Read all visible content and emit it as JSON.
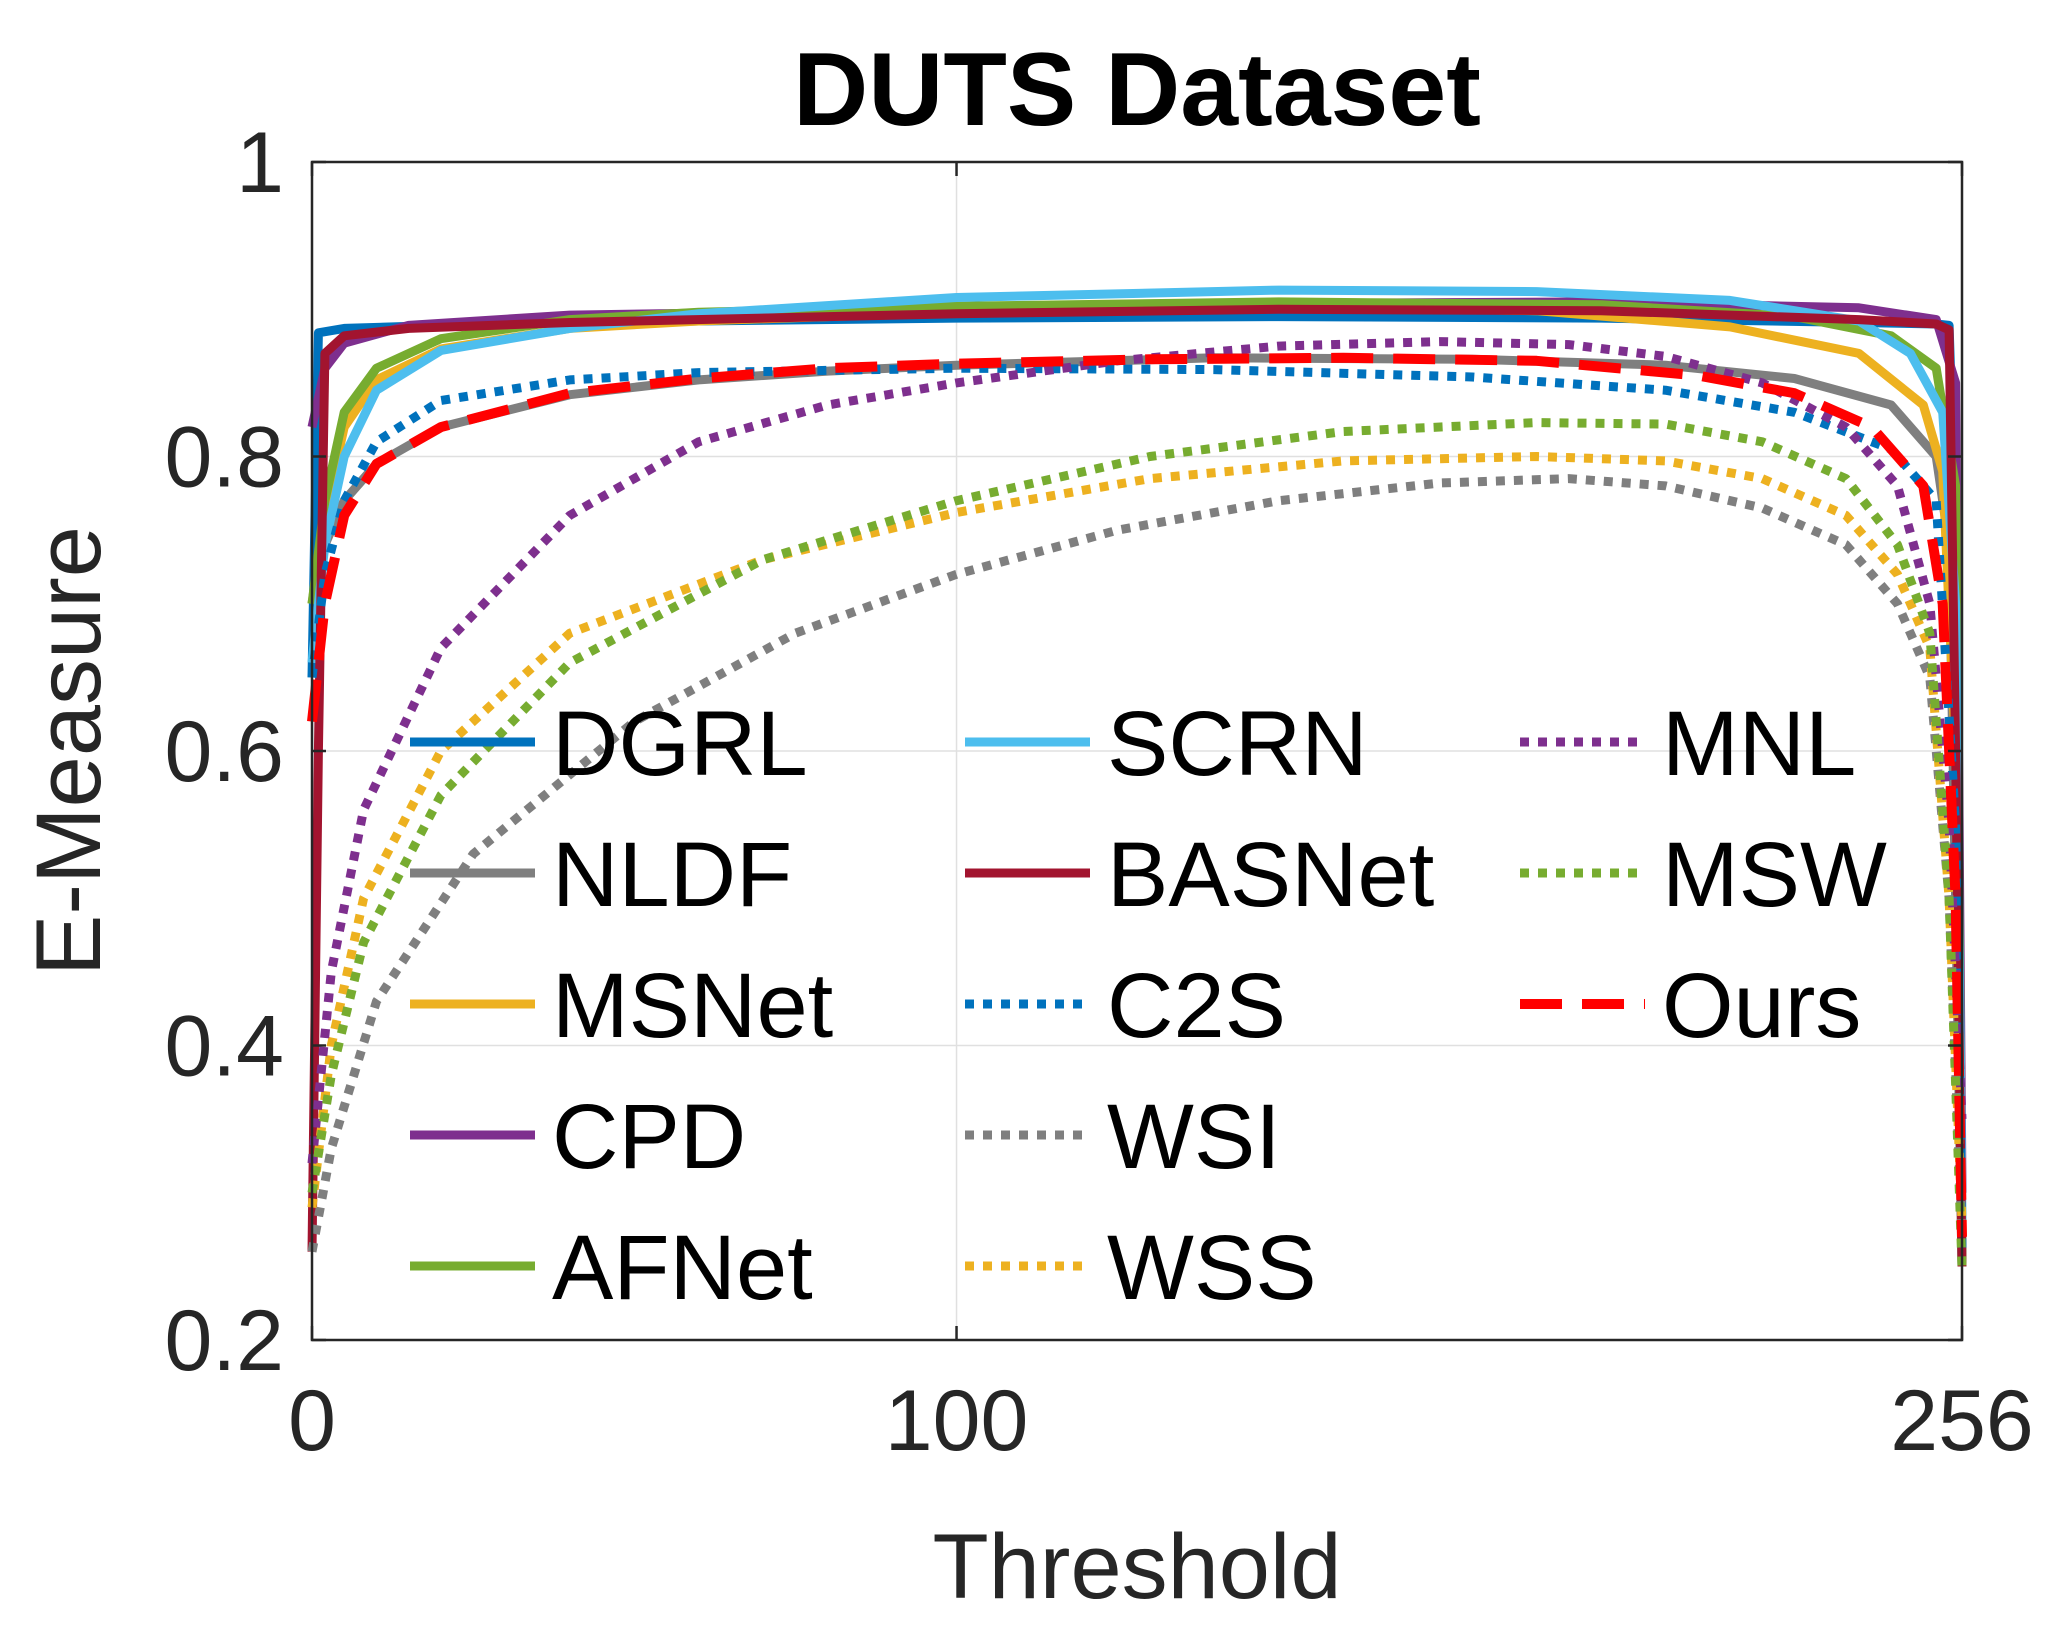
{
  "chart_data": {
    "type": "line",
    "title": "DUTS Dataset",
    "xlabel": "Threshold",
    "ylabel": "E-Measure",
    "xlim": [
      0,
      256
    ],
    "ylim": [
      0.2,
      1.0
    ],
    "xticks": [
      0,
      100,
      256
    ],
    "xtick_labels": [
      "0",
      "100",
      "256"
    ],
    "yticks": [
      0.2,
      0.4,
      0.6,
      0.8,
      1.0
    ],
    "ytick_labels": [
      "0.2",
      "0.4",
      "0.6",
      "0.8",
      "1"
    ],
    "grid": true,
    "legend_position": "center, 3 columns",
    "series": [
      {
        "name": "DGRL",
        "color": "#0072BD",
        "style": "solid",
        "points": [
          [
            0,
            0.65
          ],
          [
            1,
            0.884
          ],
          [
            5,
            0.887
          ],
          [
            20,
            0.889
          ],
          [
            60,
            0.892
          ],
          [
            100,
            0.894
          ],
          [
            150,
            0.895
          ],
          [
            200,
            0.894
          ],
          [
            240,
            0.891
          ],
          [
            252,
            0.89
          ],
          [
            254,
            0.889
          ],
          [
            255,
            0.75
          ],
          [
            256,
            0.25
          ]
        ]
      },
      {
        "name": "NLDF",
        "color": "#7F7F7F",
        "style": "solid",
        "points": [
          [
            0,
            0.7
          ],
          [
            2,
            0.74
          ],
          [
            5,
            0.77
          ],
          [
            10,
            0.795
          ],
          [
            20,
            0.82
          ],
          [
            40,
            0.842
          ],
          [
            60,
            0.852
          ],
          [
            80,
            0.858
          ],
          [
            100,
            0.862
          ],
          [
            140,
            0.867
          ],
          [
            180,
            0.866
          ],
          [
            210,
            0.862
          ],
          [
            230,
            0.853
          ],
          [
            245,
            0.835
          ],
          [
            252,
            0.8
          ],
          [
            254,
            0.74
          ],
          [
            255,
            0.5
          ],
          [
            256,
            0.25
          ]
        ]
      },
      {
        "name": "MSNet",
        "color": "#EDB120",
        "style": "solid",
        "points": [
          [
            0,
            0.7
          ],
          [
            2,
            0.76
          ],
          [
            5,
            0.82
          ],
          [
            10,
            0.852
          ],
          [
            20,
            0.873
          ],
          [
            40,
            0.887
          ],
          [
            60,
            0.892
          ],
          [
            100,
            0.898
          ],
          [
            150,
            0.902
          ],
          [
            190,
            0.899
          ],
          [
            220,
            0.888
          ],
          [
            240,
            0.87
          ],
          [
            250,
            0.835
          ],
          [
            253,
            0.79
          ],
          [
            255,
            0.6
          ],
          [
            256,
            0.27
          ]
        ]
      },
      {
        "name": "CPD",
        "color": "#7E2F8E",
        "style": "solid",
        "points": [
          [
            0,
            0.82
          ],
          [
            2,
            0.86
          ],
          [
            5,
            0.877
          ],
          [
            15,
            0.889
          ],
          [
            40,
            0.896
          ],
          [
            100,
            0.9
          ],
          [
            150,
            0.904
          ],
          [
            200,
            0.905
          ],
          [
            240,
            0.901
          ],
          [
            252,
            0.893
          ],
          [
            255,
            0.85
          ],
          [
            256,
            0.3
          ]
        ]
      },
      {
        "name": "AFNet",
        "color": "#77AC30",
        "style": "solid",
        "points": [
          [
            0,
            0.7
          ],
          [
            2,
            0.77
          ],
          [
            5,
            0.83
          ],
          [
            10,
            0.86
          ],
          [
            20,
            0.88
          ],
          [
            40,
            0.893
          ],
          [
            60,
            0.898
          ],
          [
            100,
            0.902
          ],
          [
            150,
            0.905
          ],
          [
            200,
            0.903
          ],
          [
            230,
            0.895
          ],
          [
            245,
            0.882
          ],
          [
            252,
            0.86
          ],
          [
            255,
            0.78
          ],
          [
            256,
            0.25
          ]
        ]
      },
      {
        "name": "SCRN",
        "color": "#4DBEEE",
        "style": "solid",
        "points": [
          [
            0,
            0.66
          ],
          [
            2,
            0.74
          ],
          [
            5,
            0.8
          ],
          [
            10,
            0.845
          ],
          [
            20,
            0.872
          ],
          [
            40,
            0.887
          ],
          [
            60,
            0.897
          ],
          [
            100,
            0.908
          ],
          [
            150,
            0.913
          ],
          [
            190,
            0.912
          ],
          [
            220,
            0.906
          ],
          [
            240,
            0.892
          ],
          [
            248,
            0.87
          ],
          [
            253,
            0.83
          ],
          [
            255,
            0.7
          ],
          [
            256,
            0.28
          ]
        ]
      },
      {
        "name": "BASNet",
        "color": "#A2142F",
        "style": "solid",
        "points": [
          [
            0,
            0.26
          ],
          [
            1,
            0.6
          ],
          [
            2,
            0.87
          ],
          [
            5,
            0.882
          ],
          [
            15,
            0.887
          ],
          [
            40,
            0.891
          ],
          [
            100,
            0.897
          ],
          [
            150,
            0.9
          ],
          [
            200,
            0.899
          ],
          [
            240,
            0.893
          ],
          [
            252,
            0.89
          ],
          [
            254,
            0.886
          ],
          [
            255,
            0.6
          ],
          [
            256,
            0.25
          ]
        ]
      },
      {
        "name": "C2S",
        "color": "#0072BD",
        "style": "dotted",
        "points": [
          [
            0,
            0.65
          ],
          [
            2,
            0.72
          ],
          [
            5,
            0.77
          ],
          [
            10,
            0.81
          ],
          [
            20,
            0.838
          ],
          [
            40,
            0.852
          ],
          [
            60,
            0.857
          ],
          [
            100,
            0.86
          ],
          [
            140,
            0.859
          ],
          [
            180,
            0.854
          ],
          [
            210,
            0.845
          ],
          [
            230,
            0.83
          ],
          [
            245,
            0.805
          ],
          [
            252,
            0.77
          ],
          [
            255,
            0.55
          ],
          [
            256,
            0.26
          ]
        ]
      },
      {
        "name": "WSI",
        "color": "#7F7F7F",
        "style": "dotted",
        "points": [
          [
            0,
            0.26
          ],
          [
            3,
            0.33
          ],
          [
            10,
            0.43
          ],
          [
            25,
            0.53
          ],
          [
            50,
            0.62
          ],
          [
            75,
            0.68
          ],
          [
            100,
            0.72
          ],
          [
            125,
            0.75
          ],
          [
            150,
            0.77
          ],
          [
            175,
            0.782
          ],
          [
            195,
            0.785
          ],
          [
            210,
            0.78
          ],
          [
            225,
            0.765
          ],
          [
            238,
            0.74
          ],
          [
            246,
            0.7
          ],
          [
            251,
            0.65
          ],
          [
            254,
            0.5
          ],
          [
            256,
            0.27
          ]
        ]
      },
      {
        "name": "WSS",
        "color": "#EDB120",
        "style": "dotted",
        "points": [
          [
            0,
            0.29
          ],
          [
            3,
            0.4
          ],
          [
            8,
            0.5
          ],
          [
            20,
            0.6
          ],
          [
            40,
            0.68
          ],
          [
            70,
            0.73
          ],
          [
            100,
            0.762
          ],
          [
            130,
            0.785
          ],
          [
            160,
            0.797
          ],
          [
            190,
            0.8
          ],
          [
            210,
            0.797
          ],
          [
            225,
            0.785
          ],
          [
            238,
            0.76
          ],
          [
            246,
            0.72
          ],
          [
            251,
            0.67
          ],
          [
            254,
            0.5
          ],
          [
            256,
            0.28
          ]
        ]
      },
      {
        "name": "MNL",
        "color": "#7E2F8E",
        "style": "dotted",
        "points": [
          [
            0,
            0.32
          ],
          [
            3,
            0.45
          ],
          [
            8,
            0.56
          ],
          [
            20,
            0.67
          ],
          [
            40,
            0.76
          ],
          [
            60,
            0.81
          ],
          [
            80,
            0.835
          ],
          [
            100,
            0.85
          ],
          [
            125,
            0.865
          ],
          [
            150,
            0.875
          ],
          [
            175,
            0.878
          ],
          [
            195,
            0.876
          ],
          [
            210,
            0.868
          ],
          [
            225,
            0.85
          ],
          [
            238,
            0.82
          ],
          [
            246,
            0.78
          ],
          [
            251,
            0.7
          ],
          [
            254,
            0.55
          ],
          [
            256,
            0.35
          ]
        ]
      },
      {
        "name": "MSW",
        "color": "#77AC30",
        "style": "dotted",
        "points": [
          [
            0,
            0.3
          ],
          [
            3,
            0.38
          ],
          [
            8,
            0.47
          ],
          [
            20,
            0.57
          ],
          [
            40,
            0.66
          ],
          [
            70,
            0.73
          ],
          [
            100,
            0.77
          ],
          [
            130,
            0.8
          ],
          [
            160,
            0.817
          ],
          [
            190,
            0.823
          ],
          [
            210,
            0.822
          ],
          [
            225,
            0.81
          ],
          [
            238,
            0.785
          ],
          [
            246,
            0.74
          ],
          [
            251,
            0.68
          ],
          [
            254,
            0.5
          ],
          [
            256,
            0.25
          ]
        ]
      },
      {
        "name": "Ours",
        "color": "#FF0000",
        "style": "dashed",
        "points": [
          [
            0,
            0.62
          ],
          [
            2,
            0.7
          ],
          [
            5,
            0.76
          ],
          [
            10,
            0.795
          ],
          [
            20,
            0.82
          ],
          [
            40,
            0.843
          ],
          [
            60,
            0.853
          ],
          [
            80,
            0.86
          ],
          [
            100,
            0.863
          ],
          [
            130,
            0.866
          ],
          [
            160,
            0.867
          ],
          [
            190,
            0.865
          ],
          [
            215,
            0.855
          ],
          [
            230,
            0.843
          ],
          [
            242,
            0.82
          ],
          [
            250,
            0.78
          ],
          [
            253,
            0.7
          ],
          [
            255,
            0.5
          ],
          [
            256,
            0.27
          ]
        ]
      }
    ]
  }
}
